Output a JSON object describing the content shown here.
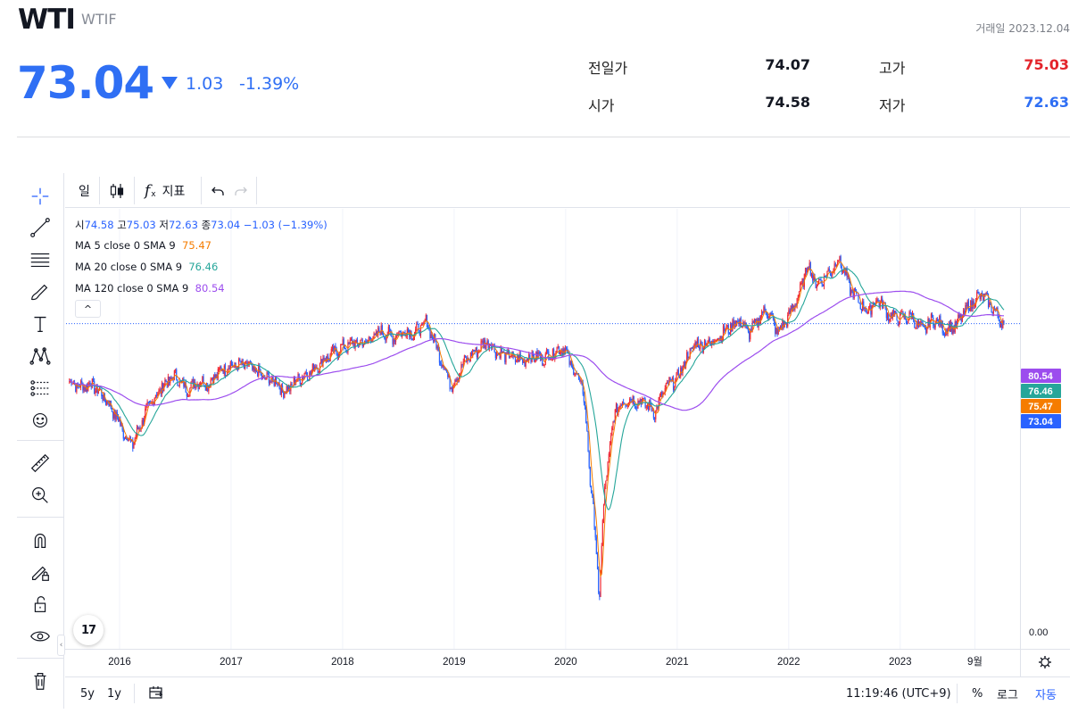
{
  "header": {
    "ticker": "WTI",
    "code": "WTIF",
    "trade_date": "거래일 2023.12.04",
    "price": "73.04",
    "change": "1.03",
    "change_pct": "-1.39%",
    "prev_close_label": "전일가",
    "prev_close": "74.07",
    "high_label": "고가",
    "high": "75.03",
    "open_label": "시가",
    "open": "74.58",
    "low_label": "저가",
    "low": "72.63"
  },
  "colors": {
    "down": "#2f6ff4",
    "up": "#e3242b",
    "candle_up": "#ef2a37",
    "candle_down": "#2962ff",
    "ma5": "#f57c00",
    "ma20": "#26a69a",
    "ma120": "#9c4dee",
    "price_tag": "#2962ff"
  },
  "toolbar": {
    "interval": "일",
    "indicators": "지표",
    "fx_symbol": "f"
  },
  "legend": {
    "o_label": "시",
    "o": "74.58",
    "h_label": "고",
    "h": "75.03",
    "l_label": "저",
    "l": "72.63",
    "c_label": "종",
    "c": "73.04",
    "chg": "−1.03 (−1.39%)",
    "ma5_label": "MA 5 close 0 SMA 9",
    "ma5_val": "75.47",
    "ma20_label": "MA 20 close 0 SMA 9",
    "ma20_val": "76.46",
    "ma120_label": "MA 120 close 0 SMA 9",
    "ma120_val": "80.54",
    "collapse": "^"
  },
  "bottom_bar": {
    "range_5y": "5y",
    "range_1y": "1y",
    "clock": "11:19:46 (UTC+9)",
    "percent": "%",
    "log": "로그",
    "auto": "자동"
  },
  "logo_text": "17",
  "chart_data": {
    "type": "candlestick",
    "title": "WTI",
    "x_tick_labels": [
      "2016",
      "2017",
      "2018",
      "2019",
      "2020",
      "2021",
      "2022",
      "2023",
      "9월"
    ],
    "x_tick_times": [
      2016.0,
      2017.0,
      2018.0,
      2019.0,
      2020.0,
      2021.0,
      2022.0,
      2023.0,
      2023.67
    ],
    "x_range": [
      2015.52,
      2024.05
    ],
    "y_axis_labels": [
      "0.00"
    ],
    "y_axis_values": [
      0
    ],
    "y_range_note": "log-style scale; only 0.00 label visible",
    "price_tags": [
      {
        "label": "80.54",
        "value": 80.54,
        "series": "MA 120"
      },
      {
        "label": "76.46",
        "value": 76.46,
        "series": "MA 20"
      },
      {
        "label": "75.47",
        "value": 75.47,
        "series": "MA 5"
      },
      {
        "label": "73.04",
        "value": 73.04,
        "series": "close"
      }
    ],
    "last_close": 73.04,
    "close_path": [
      [
        2015.55,
        47
      ],
      [
        2015.65,
        45
      ],
      [
        2015.75,
        46
      ],
      [
        2015.85,
        42
      ],
      [
        2015.95,
        37
      ],
      [
        2016.05,
        31
      ],
      [
        2016.12,
        29
      ],
      [
        2016.25,
        38
      ],
      [
        2016.4,
        46
      ],
      [
        2016.5,
        49
      ],
      [
        2016.6,
        44
      ],
      [
        2016.7,
        47
      ],
      [
        2016.8,
        46
      ],
      [
        2016.9,
        51
      ],
      [
        2017.0,
        53
      ],
      [
        2017.15,
        53
      ],
      [
        2017.3,
        48
      ],
      [
        2017.4,
        47
      ],
      [
        2017.48,
        43
      ],
      [
        2017.6,
        48
      ],
      [
        2017.7,
        50
      ],
      [
        2017.85,
        56
      ],
      [
        2018.0,
        61
      ],
      [
        2018.1,
        63
      ],
      [
        2018.2,
        63
      ],
      [
        2018.35,
        69
      ],
      [
        2018.45,
        66
      ],
      [
        2018.55,
        69
      ],
      [
        2018.65,
        68
      ],
      [
        2018.75,
        74
      ],
      [
        2018.85,
        60
      ],
      [
        2018.92,
        51
      ],
      [
        2018.98,
        45
      ],
      [
        2019.1,
        55
      ],
      [
        2019.3,
        64
      ],
      [
        2019.4,
        58
      ],
      [
        2019.5,
        57
      ],
      [
        2019.6,
        55
      ],
      [
        2019.7,
        57
      ],
      [
        2019.8,
        56
      ],
      [
        2019.9,
        59
      ],
      [
        2019.98,
        61
      ],
      [
        2020.05,
        53
      ],
      [
        2020.15,
        45
      ],
      [
        2020.22,
        22
      ],
      [
        2020.28,
        12
      ],
      [
        2020.3,
        8
      ],
      [
        2020.35,
        20
      ],
      [
        2020.45,
        38
      ],
      [
        2020.55,
        41
      ],
      [
        2020.7,
        40
      ],
      [
        2020.8,
        37
      ],
      [
        2020.9,
        45
      ],
      [
        2021.0,
        48
      ],
      [
        2021.15,
        62
      ],
      [
        2021.3,
        63
      ],
      [
        2021.45,
        70
      ],
      [
        2021.55,
        75
      ],
      [
        2021.65,
        68
      ],
      [
        2021.8,
        82
      ],
      [
        2021.9,
        68
      ],
      [
        2022.0,
        77
      ],
      [
        2022.1,
        93
      ],
      [
        2022.17,
        115
      ],
      [
        2022.25,
        98
      ],
      [
        2022.38,
        110
      ],
      [
        2022.45,
        120
      ],
      [
        2022.55,
        96
      ],
      [
        2022.6,
        90
      ],
      [
        2022.7,
        80
      ],
      [
        2022.8,
        88
      ],
      [
        2022.9,
        78
      ],
      [
        2023.0,
        76
      ],
      [
        2023.1,
        77
      ],
      [
        2023.2,
        69
      ],
      [
        2023.3,
        76
      ],
      [
        2023.4,
        70
      ],
      [
        2023.5,
        72
      ],
      [
        2023.6,
        82
      ],
      [
        2023.68,
        89
      ],
      [
        2023.73,
        91
      ],
      [
        2023.8,
        85
      ],
      [
        2023.88,
        77
      ],
      [
        2023.93,
        73.04
      ]
    ]
  }
}
